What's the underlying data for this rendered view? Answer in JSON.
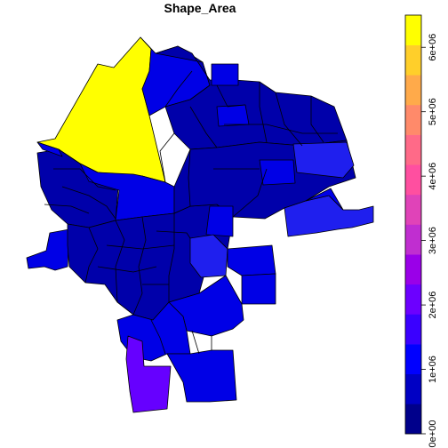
{
  "map": {
    "title": "Shape_Area",
    "colors": {
      "level_0": "#0000aa",
      "level_1": "#0000e6",
      "level_1b": "#1f1fee",
      "level_2": "#6600ff",
      "level_3": "#9a00ff",
      "yellow": "#ffff00",
      "stroke": "#000000"
    }
  },
  "legend": {
    "ticks": [
      "0e+00",
      "1e+06",
      "2e+06",
      "3e+06",
      "4e+06",
      "5e+06",
      "6e+06"
    ],
    "tick_values": [
      0,
      1000000,
      2000000,
      3000000,
      4000000,
      5000000,
      6000000
    ],
    "range": [
      0,
      6500000
    ],
    "bins": [
      "#00008b",
      "#0000c4",
      "#0000ff",
      "#3a00ff",
      "#6c00ff",
      "#9a00e8",
      "#c02ed0",
      "#e043b8",
      "#ff4fa0",
      "#ff6a88",
      "#ff8a6a",
      "#ffaa4a",
      "#ffcf2a",
      "#ffff00"
    ]
  }
}
